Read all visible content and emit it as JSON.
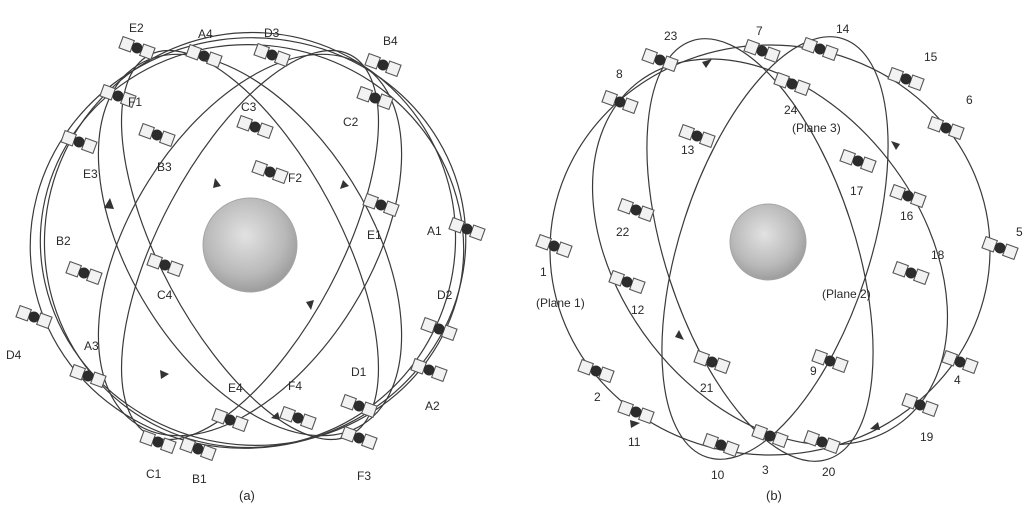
{
  "panels": {
    "a": {
      "caption": "(a)",
      "satellites": [
        "E2",
        "A4",
        "D3",
        "B4",
        "F1",
        "C3",
        "C2",
        "B3",
        "E3",
        "F2",
        "E1",
        "A1",
        "B2",
        "C4",
        "D2",
        "D4",
        "A3",
        "E4",
        "F4",
        "D1",
        "A2",
        "C1",
        "B1",
        "F3"
      ]
    },
    "b": {
      "caption": "(b)",
      "satellites": [
        "23",
        "7",
        "14",
        "15",
        "8",
        "24",
        "6",
        "13",
        "17",
        "16",
        "22",
        "5",
        "1",
        "18",
        "12",
        "21",
        "9",
        "4",
        "2",
        "11",
        "10",
        "3",
        "20",
        "19"
      ],
      "planes": [
        "(Plane 1)",
        "(Plane 2)",
        "(Plane 3)"
      ]
    }
  },
  "colors": {
    "line": "#3a3a3a",
    "earth": "#bdbdbd",
    "satellite": "#2c2c2c"
  }
}
